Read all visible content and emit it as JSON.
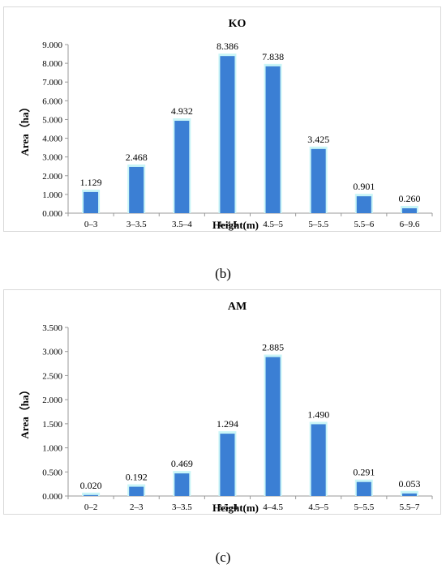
{
  "colors": {
    "bar": "#3b7fd4",
    "bar_glow": "#c9f5f7",
    "axis": "#999999",
    "border": "#d9d9d9"
  },
  "captions": {
    "b": "(b)",
    "c": "(c)"
  },
  "chart_data": [
    {
      "type": "bar",
      "title": "KO",
      "xlabel": "Height(m)",
      "ylabel": "Area（ha）",
      "categories": [
        "0–3",
        "3–3.5",
        "3.5–4",
        "4–4.5",
        "4.5–5",
        "5–5.5",
        "5.5–6",
        "6–9.6"
      ],
      "values": [
        1.129,
        2.468,
        4.932,
        8.386,
        7.838,
        3.425,
        0.901,
        0.26
      ],
      "data_labels": [
        "1.129",
        "2.468",
        "4.932",
        "8.386",
        "7.838",
        "3.425",
        "0.901",
        "0.260"
      ],
      "ylim": [
        0,
        9
      ],
      "yticks": [
        "0.000",
        "1.000",
        "2.000",
        "3.000",
        "4.000",
        "5.000",
        "6.000",
        "7.000",
        "8.000",
        "9.000"
      ],
      "ytick_values": [
        0,
        1,
        2,
        3,
        4,
        5,
        6,
        7,
        8,
        9
      ],
      "grid": false,
      "legend": "none"
    },
    {
      "type": "bar",
      "title": "AM",
      "xlabel": "Height(m)",
      "ylabel": "Area（ha）",
      "categories": [
        "0–2",
        "2–3",
        "3–3.5",
        "3.5–4",
        "4–4.5",
        "4.5–5",
        "5–5.5",
        "5.5–7"
      ],
      "values": [
        0.02,
        0.192,
        0.469,
        1.294,
        2.885,
        1.49,
        0.291,
        0.053
      ],
      "data_labels": [
        "0.020",
        "0.192",
        "0.469",
        "1.294",
        "2.885",
        "1.490",
        "0.291",
        "0.053"
      ],
      "ylim": [
        0,
        3.5
      ],
      "yticks": [
        "0.000",
        "0.500",
        "1.000",
        "1.500",
        "2.000",
        "2.500",
        "3.000",
        "3.500"
      ],
      "ytick_values": [
        0,
        0.5,
        1,
        1.5,
        2,
        2.5,
        3,
        3.5
      ],
      "grid": false,
      "legend": "none"
    }
  ]
}
